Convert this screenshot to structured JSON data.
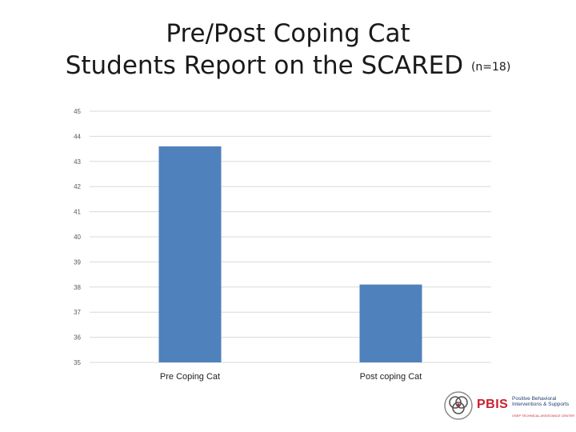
{
  "title": {
    "line1": "Pre/Post Coping Cat",
    "line2": "Students Report on the SCARED",
    "n_label": "(n=18)"
  },
  "chart_data": {
    "type": "bar",
    "categories": [
      "Pre Coping Cat",
      "Post coping Cat"
    ],
    "values": [
      43.6,
      38.1
    ],
    "ylim": [
      35,
      45
    ],
    "yticks": [
      "45",
      "44",
      "43",
      "42",
      "41",
      "40",
      "39",
      "38",
      "37",
      "36",
      "35"
    ],
    "title": "",
    "xlabel": "",
    "ylabel": "",
    "grid": true,
    "legend": "none",
    "bar_color": "#4f81bd",
    "grid_color": "#d9d9d9"
  },
  "logo": {
    "wordmark": "PBIS",
    "tagline": "Positive Behavioral Interventions & Supports",
    "center": "OSEP TECHNICAL ASSISTANCE CENTER"
  }
}
